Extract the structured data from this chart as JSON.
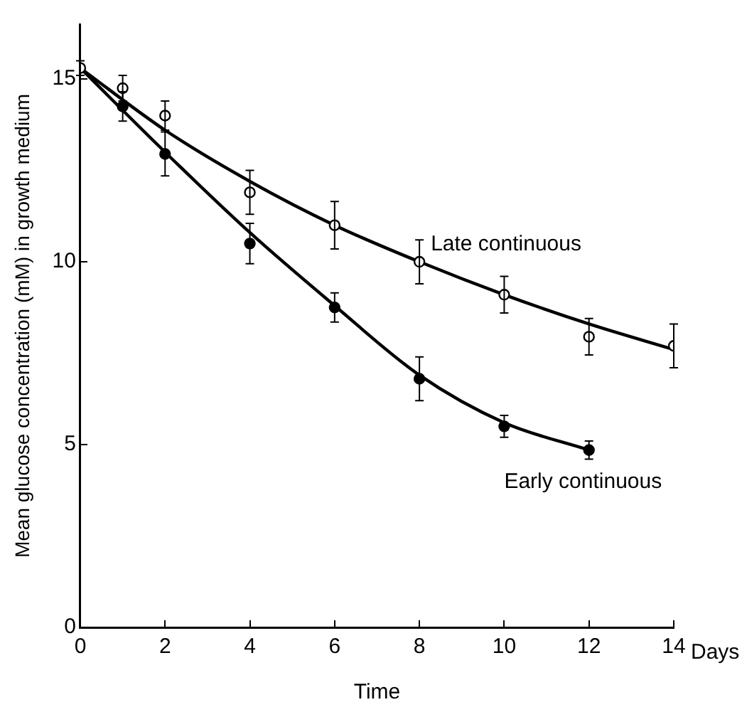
{
  "chart_data": {
    "type": "scatter",
    "xlabel": "Time",
    "ylabel": "Mean glucose concentration (mM) in growth medium",
    "xlim": [
      0,
      14
    ],
    "xticks": [
      0,
      2,
      4,
      6,
      8,
      10,
      12,
      14
    ],
    "ylim": [
      0,
      16.5
    ],
    "yticks": [
      0,
      5,
      10,
      15
    ],
    "grid": false,
    "legend": false,
    "annotations": [
      "Days"
    ],
    "series": [
      {
        "marker": "circle",
        "color": "#000000",
        "x": [
          0,
          1,
          2,
          4,
          6,
          8,
          10,
          12,
          14
        ],
        "values": [
          15.3,
          14.75,
          14.0,
          11.9,
          11.0,
          10.0,
          9.1,
          7.95,
          7.7
        ],
        "errors": [
          0.2,
          0.35,
          0.4,
          0.6,
          0.65,
          0.6,
          0.5,
          0.5,
          0.6
        ]
      },
      {
        "marker": "circle",
        "color": "#000000",
        "x": [
          1,
          2,
          4,
          6,
          8,
          10,
          12
        ],
        "values": [
          14.25,
          12.95,
          10.5,
          8.75,
          6.8,
          5.5,
          4.85
        ],
        "errors": [
          0.4,
          0.6,
          0.55,
          0.4,
          0.6,
          0.3,
          0.25
        ]
      },
      {
        "type": "line",
        "marker": "none",
        "name": "Late continuous",
        "color": "#000000",
        "x": [
          0,
          2,
          4,
          6,
          8,
          10,
          12,
          14
        ],
        "values": [
          15.3,
          13.6,
          12.2,
          11.0,
          10.0,
          9.1,
          8.3,
          7.6
        ]
      },
      {
        "type": "line",
        "marker": "none",
        "name": "Early continuous",
        "color": "#000000",
        "x": [
          0,
          2,
          4,
          6,
          8,
          10,
          12
        ],
        "values": [
          15.3,
          13.0,
          10.8,
          8.8,
          6.9,
          5.6,
          4.85
        ]
      }
    ]
  }
}
